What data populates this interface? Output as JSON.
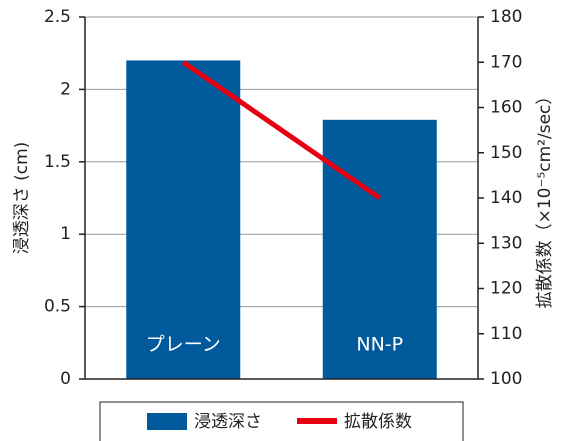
{
  "chart_data": {
    "type": "bar",
    "categories": [
      "プレーン",
      "NN-P"
    ],
    "series": [
      {
        "name": "浸透深さ",
        "type": "bar",
        "color": "#005a9c",
        "values": [
          2.2,
          1.79
        ]
      },
      {
        "name": "拡散係数",
        "type": "line",
        "color": "#e60012",
        "axis": "y2",
        "values": [
          170,
          140
        ]
      }
    ],
    "ylabel": "浸透深さ (cm)",
    "y2label": "拡散係数（×10⁻⁵cm²/sec）",
    "ylim": [
      0,
      2.5
    ],
    "yticks": [
      0,
      0.5,
      1,
      1.5,
      2,
      2.5
    ],
    "y2lim": [
      100,
      180
    ],
    "y2ticks": [
      100,
      110,
      120,
      130,
      140,
      150,
      160,
      170,
      180
    ],
    "grid": true,
    "legend": "bottom"
  }
}
